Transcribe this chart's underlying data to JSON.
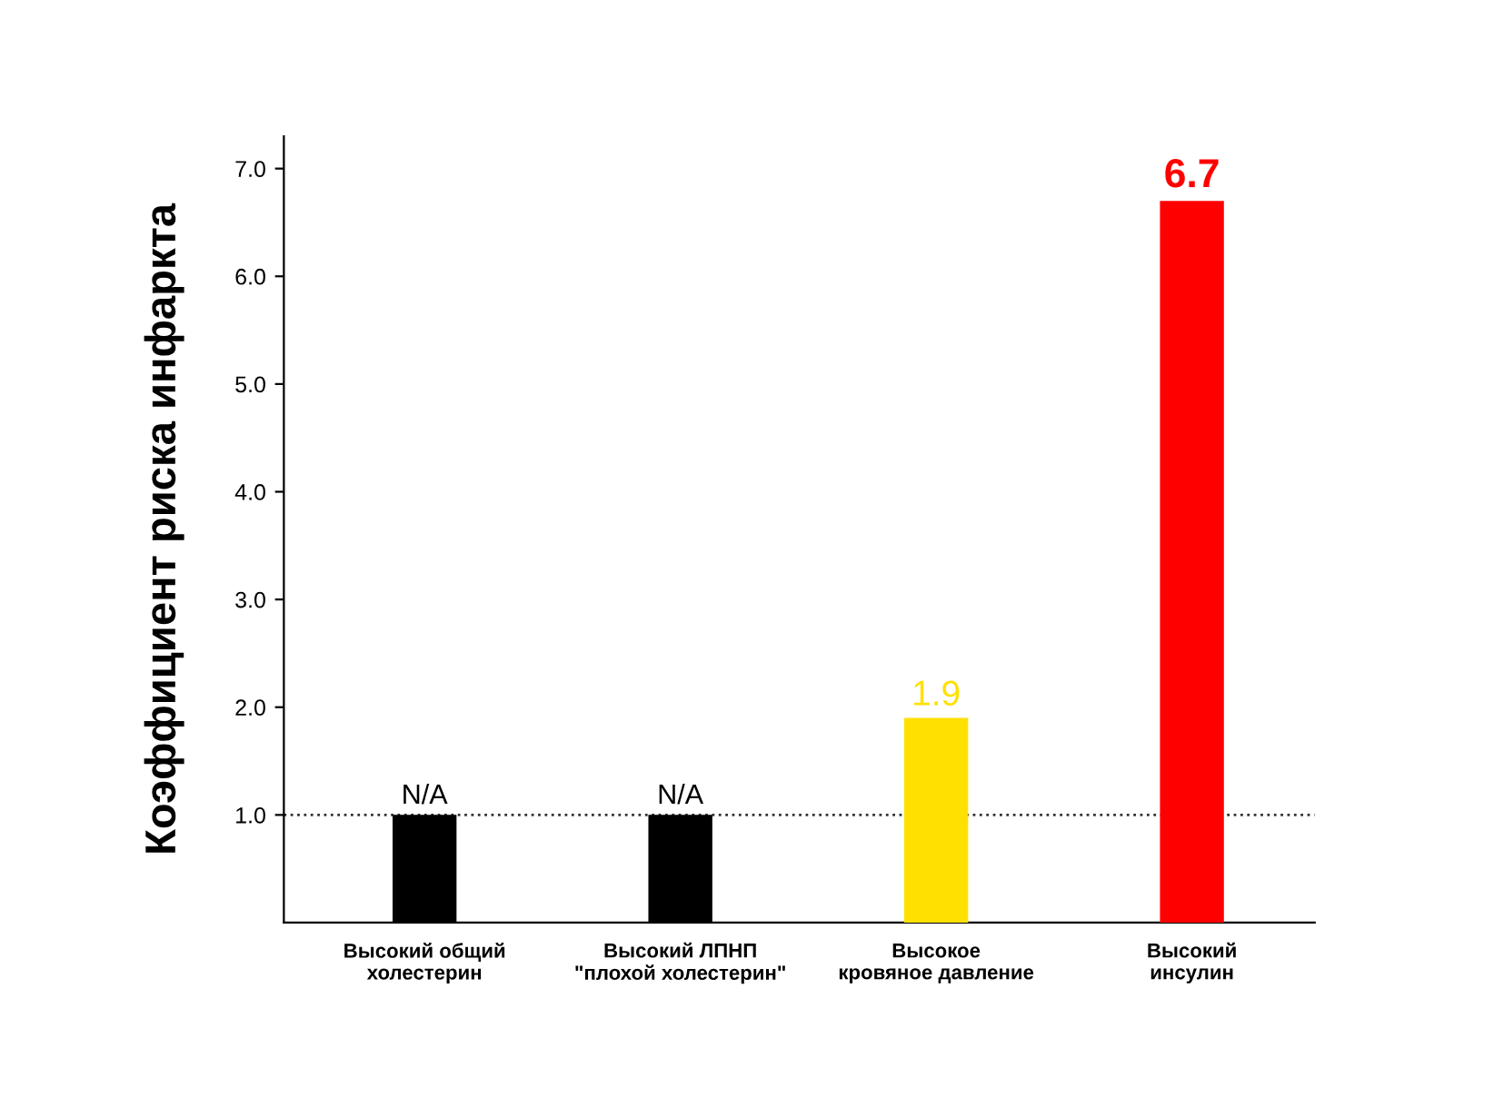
{
  "chart_data": {
    "type": "bar",
    "ylabel": "Коэффициент риска инфаркта",
    "categories": [
      "Высокий общий\nхолестерин",
      "Высокий ЛПНП\n\"плохой холестерин\"",
      "Высокое\nкровяное давление",
      "Высокий\nинсулин"
    ],
    "values": [
      1.0,
      1.0,
      1.9,
      6.7
    ],
    "colors": [
      "#000000",
      "#000000",
      "#ffe000",
      "#ff0000"
    ],
    "value_labels": [
      "N/A",
      "N/A",
      "1.9",
      "6.7"
    ],
    "ylim": [
      0,
      7.3
    ],
    "yticks": [
      {
        "value": 1,
        "label": "1.0"
      },
      {
        "value": 2,
        "label": "2.0"
      },
      {
        "value": 3,
        "label": "3.0"
      },
      {
        "value": 4,
        "label": "4.0"
      },
      {
        "value": 5,
        "label": "5.0"
      },
      {
        "value": 6,
        "label": "6.0"
      },
      {
        "value": 7,
        "label": "7.0"
      }
    ],
    "ref_lines": [
      {
        "axis": "y",
        "value": 1.0,
        "label": null,
        "color": "#333333",
        "line_style": "dotted"
      }
    ],
    "grid": false,
    "legend": false
  }
}
